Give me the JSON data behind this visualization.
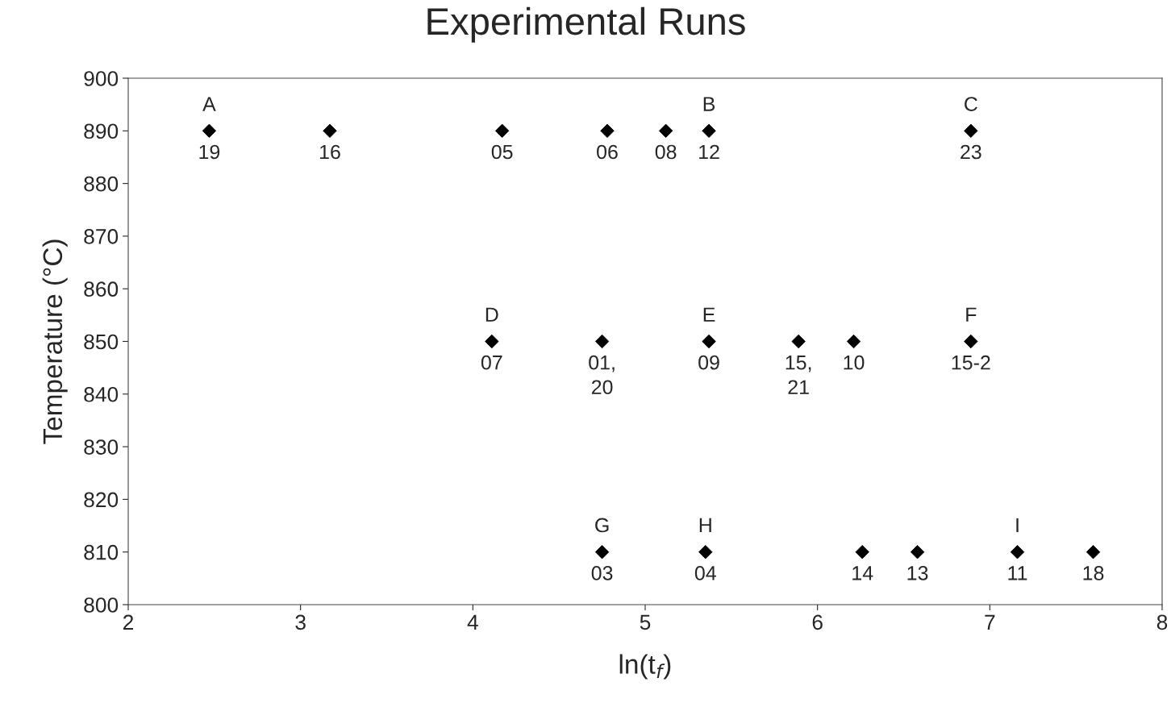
{
  "chart_data": {
    "type": "scatter",
    "title": "Experimental Runs",
    "xlabel": "ln(t$_{f}$)",
    "ylabel": "Temperature (°C)",
    "x": [
      2.47,
      3.17,
      4.17,
      4.78,
      5.12,
      5.37,
      6.89,
      4.11,
      4.75,
      5.37,
      5.89,
      6.21,
      6.89,
      4.75,
      5.35,
      6.26,
      6.58,
      7.16,
      7.6
    ],
    "series": [
      {
        "color": "#000000",
        "values": [
          890,
          890,
          890,
          890,
          890,
          890,
          890,
          850,
          850,
          850,
          850,
          850,
          850,
          810,
          810,
          810,
          810,
          810,
          810
        ]
      }
    ],
    "marker": "diamond",
    "grid": false,
    "xlim": [
      2,
      8
    ],
    "xticks": [
      2,
      3,
      4,
      5,
      6,
      7,
      8
    ],
    "ylim": [
      800,
      900
    ],
    "yticks": [
      800,
      810,
      820,
      830,
      840,
      850,
      860,
      870,
      880,
      890,
      900
    ],
    "annotations": [
      {
        "text": "A",
        "x": 2.47,
        "y": 890
      },
      {
        "text": "19",
        "x": 2.47,
        "y": 890
      },
      {
        "text": "16",
        "x": 3.17,
        "y": 890
      },
      {
        "text": "05",
        "x": 4.17,
        "y": 890
      },
      {
        "text": "06",
        "x": 4.78,
        "y": 890
      },
      {
        "text": "08",
        "x": 5.12,
        "y": 890
      },
      {
        "text": "B",
        "x": 5.37,
        "y": 890
      },
      {
        "text": "12",
        "x": 5.37,
        "y": 890
      },
      {
        "text": "C",
        "x": 6.89,
        "y": 890
      },
      {
        "text": "23",
        "x": 6.89,
        "y": 890
      },
      {
        "text": "D",
        "x": 4.11,
        "y": 850
      },
      {
        "text": "07",
        "x": 4.11,
        "y": 850
      },
      {
        "text": "01,\n20",
        "x": 4.75,
        "y": 850
      },
      {
        "text": "E",
        "x": 5.37,
        "y": 850
      },
      {
        "text": "09",
        "x": 5.37,
        "y": 850
      },
      {
        "text": "15,\n21",
        "x": 5.89,
        "y": 850
      },
      {
        "text": "10",
        "x": 6.21,
        "y": 850
      },
      {
        "text": "F",
        "x": 6.89,
        "y": 850
      },
      {
        "text": "15-2",
        "x": 6.89,
        "y": 850
      },
      {
        "text": "G",
        "x": 4.75,
        "y": 810
      },
      {
        "text": "03",
        "x": 4.75,
        "y": 810
      },
      {
        "text": "H",
        "x": 5.35,
        "y": 810
      },
      {
        "text": "04",
        "x": 5.35,
        "y": 810
      },
      {
        "text": "14",
        "x": 6.26,
        "y": 810
      },
      {
        "text": "13",
        "x": 6.58,
        "y": 810
      },
      {
        "text": "I",
        "x": 7.16,
        "y": 810
      },
      {
        "text": "11",
        "x": 7.16,
        "y": 810
      },
      {
        "text": "18",
        "x": 7.6,
        "y": 810
      }
    ]
  }
}
